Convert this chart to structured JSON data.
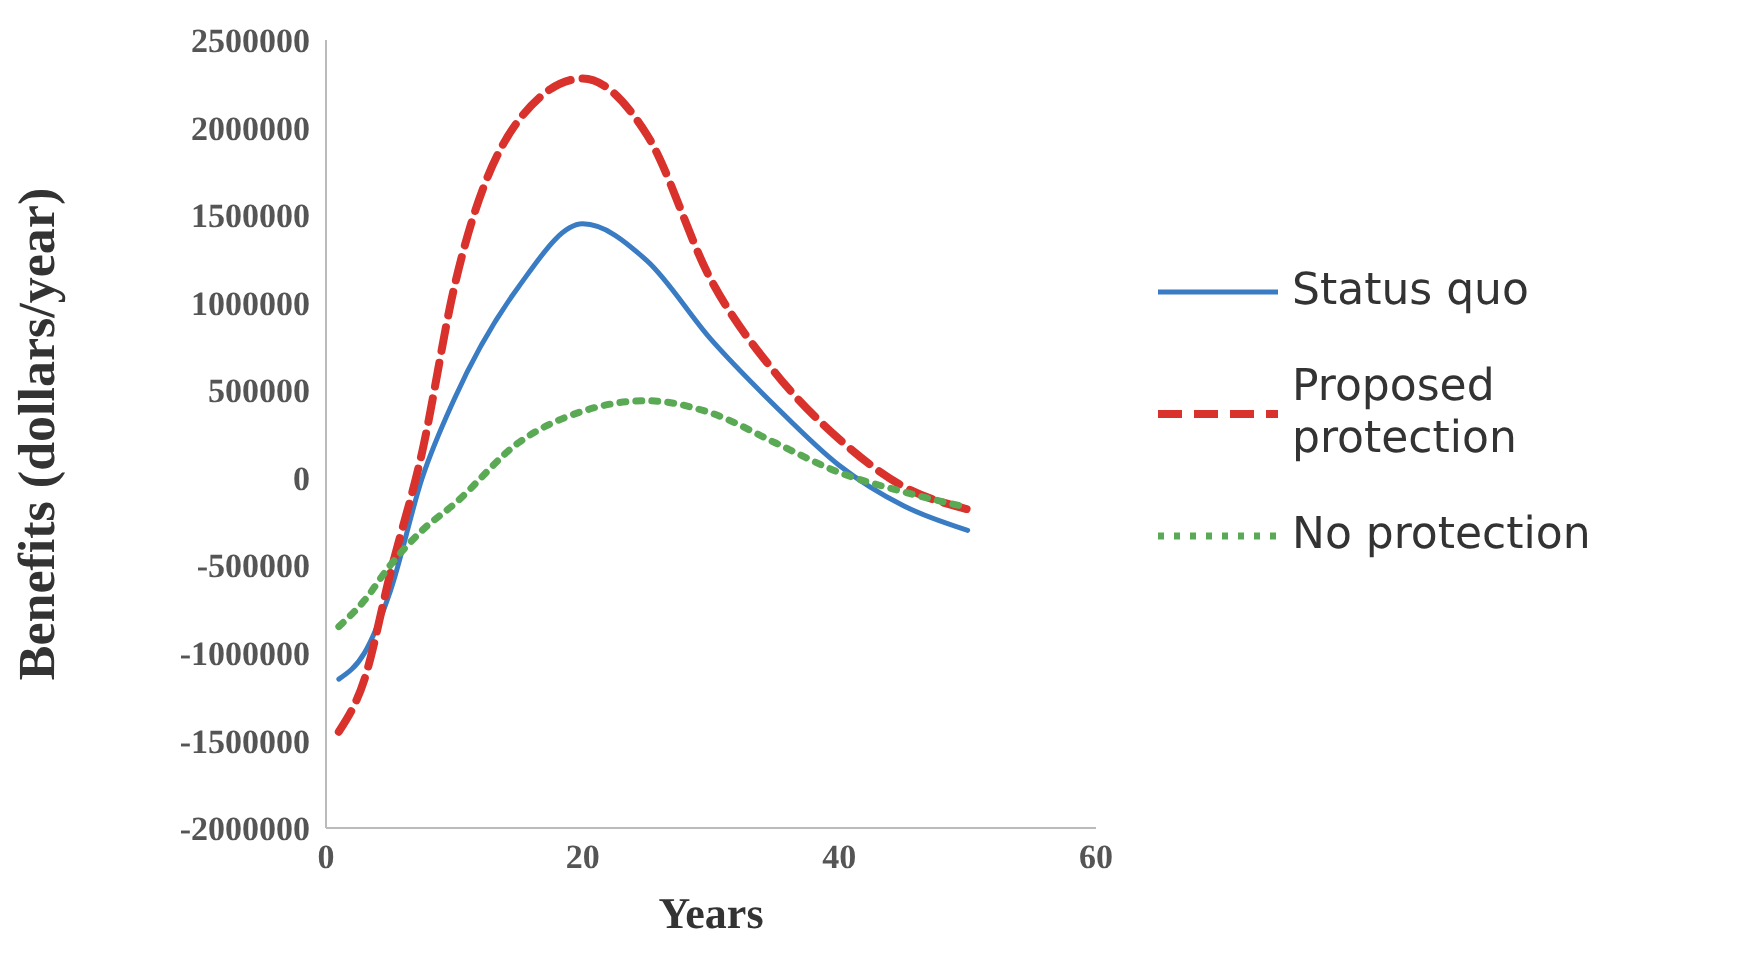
{
  "chart_data": {
    "type": "line",
    "xlabel": "Years",
    "ylabel": "Benefits (dollars/year)",
    "xlim": [
      0,
      60
    ],
    "xticks": [
      0,
      20,
      40,
      60
    ],
    "ylim": [
      -2000000,
      2500000
    ],
    "yticks": [
      -2000000,
      -1500000,
      -1000000,
      -500000,
      0,
      500000,
      1000000,
      1500000,
      2000000,
      2500000
    ],
    "legend": "right",
    "marker": "none",
    "x": [
      1,
      3,
      5,
      7.5,
      10,
      15,
      20,
      25,
      30,
      35,
      40,
      45,
      50
    ],
    "series": [
      {
        "name": "Status quo",
        "color": "#3a7cc4",
        "line_style": "solid",
        "values": [
          -1150000,
          -1000000,
          -650000,
          0,
          450000,
          1090000,
          1450000,
          1240000,
          790000,
          410000,
          70000,
          -160000,
          -300000
        ]
      },
      {
        "name": "Proposed protection",
        "color": "#d9312b",
        "line_style": "dashed",
        "values": [
          -1450000,
          -1150000,
          -550000,
          150000,
          1090000,
          2040000,
          2280000,
          1960000,
          1130000,
          600000,
          220000,
          -50000,
          -180000
        ]
      },
      {
        "name": "No protection",
        "color": "#5aa955",
        "line_style": "dotted",
        "values": [
          -850000,
          -700000,
          -500000,
          -300000,
          -150000,
          200000,
          380000,
          440000,
          370000,
          200000,
          30000,
          -80000,
          -170000
        ]
      }
    ]
  }
}
